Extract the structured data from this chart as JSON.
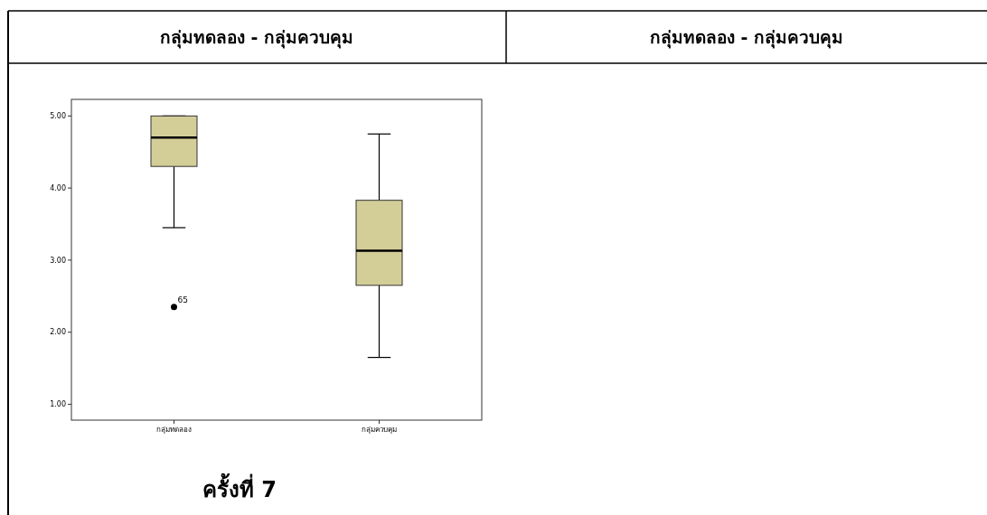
{
  "chart_data": {
    "type": "box",
    "title": "กลุ่มทดลอง - กลุ่มควบคุม",
    "categories": [
      "กลุ่มทดลอง",
      "กลุ่มควบคุม"
    ],
    "boxes": [
      {
        "low": 3.45,
        "q1": 4.3,
        "median": 4.7,
        "q3": 5.0,
        "high": 5.0,
        "outliers": [
          2.35
        ]
      },
      {
        "low": 1.65,
        "q1": 2.65,
        "median": 3.13,
        "q3": 3.83,
        "high": 4.75
      }
    ],
    "color": "#d3ce97",
    "ylim": [
      0.78,
      5.23
    ],
    "yticks": [
      {
        "value": 1,
        "label": "1.00"
      },
      {
        "value": 2,
        "label": "2.00"
      },
      {
        "value": 3,
        "label": "3.00"
      },
      {
        "value": 4,
        "label": "4.00"
      },
      {
        "value": 5,
        "label": "5.00"
      }
    ],
    "annotations": [
      "65",
      "กลุ่มทดลอง - กลุ่มควบคุม",
      "ครั้งที่ 7"
    ]
  }
}
